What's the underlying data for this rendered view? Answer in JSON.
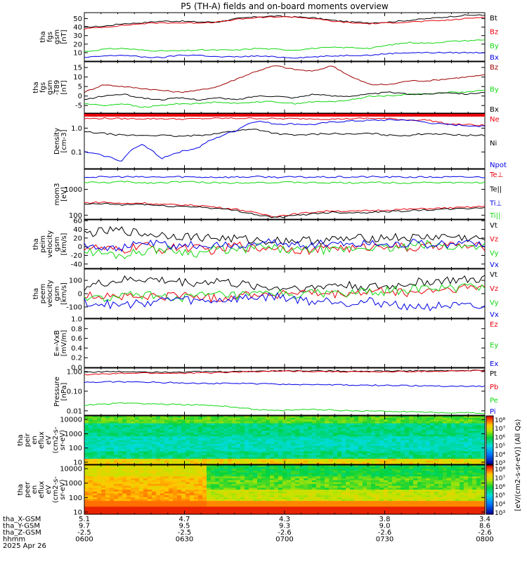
{
  "title": "P5 (TH-A) fields and on-board moments overview",
  "colors": {
    "black": "#000000",
    "red": "#e8000b",
    "green": "#11d811",
    "blue": "#0000e6",
    "darkred": "#9c0000"
  },
  "chart_data": [
    {
      "type": "line",
      "ylabel_lines": [
        "tha",
        "fgs",
        "gsm",
        "[nT]"
      ],
      "ylim": [
        0,
        57
      ],
      "yticks": [
        10,
        20,
        30,
        40,
        50
      ],
      "series": [
        {
          "name": "Bt",
          "color": "black",
          "values": [
            40,
            41,
            44,
            45,
            47,
            47,
            46,
            46,
            50,
            52,
            53,
            52,
            51,
            48,
            46,
            45,
            46,
            48,
            50,
            52,
            54,
            54
          ]
        },
        {
          "name": "Bz",
          "color": "red",
          "values": [
            38,
            40,
            42,
            44,
            45,
            45,
            45,
            46,
            49,
            51,
            52,
            52,
            50,
            47,
            45,
            44,
            45,
            46,
            47,
            48,
            50,
            52
          ]
        },
        {
          "name": "By",
          "color": "green",
          "values": [
            11,
            14,
            15,
            13,
            12,
            12,
            13,
            13,
            13,
            15,
            14,
            13,
            15,
            16,
            16,
            15,
            19,
            22,
            21,
            23,
            24,
            25
          ]
        },
        {
          "name": "Bx",
          "color": "blue",
          "values": [
            4,
            6,
            7,
            5,
            4,
            7,
            7,
            5,
            5,
            6,
            5,
            4,
            5,
            6,
            7,
            7,
            9,
            10,
            10,
            10,
            10,
            10
          ]
        }
      ]
    },
    {
      "type": "line",
      "ylabel_lines": [
        "tha",
        "fgs",
        "gsm",
        "-T89",
        "[nT]"
      ],
      "ylim": [
        -9,
        18
      ],
      "yticks": [
        -5,
        0,
        5,
        10,
        15
      ],
      "series": [
        {
          "name": "Bz",
          "color": "darkred",
          "values": [
            2,
            6,
            5,
            4,
            3,
            2,
            3,
            5,
            9,
            13,
            16,
            14,
            13,
            16,
            10,
            6,
            6,
            8,
            8,
            9,
            10,
            11
          ]
        },
        {
          "name": "By",
          "color": "green",
          "values": [
            -4,
            -5,
            -4,
            -6,
            -5,
            -4,
            -4,
            -3,
            -4,
            -3,
            -3,
            -4,
            -3,
            -3,
            -2,
            0,
            0,
            1,
            1,
            2,
            2,
            3
          ]
        },
        {
          "name": "Bx",
          "color": "black",
          "values": [
            -2,
            0,
            1,
            -1,
            -2,
            -1,
            -2,
            -1,
            -2,
            0,
            0,
            -1,
            1,
            0,
            0,
            1,
            2,
            1,
            1,
            2,
            1,
            2
          ]
        }
      ]
    },
    {
      "type": "line",
      "scale": "log",
      "ylabel_lines": [
        "Density",
        "[cm-3]"
      ],
      "ylim": [
        0.02,
        4
      ],
      "yticks": [
        0.1,
        1.0
      ],
      "series": [
        {
          "name": "Ne",
          "color": "red",
          "values": [
            2.5,
            2.6,
            2.5,
            2.5,
            2.5,
            2.4,
            2.5,
            2.6,
            2.6,
            2.6,
            2.5,
            2.5,
            2.5,
            2.4,
            2.5,
            2.6,
            2.5,
            2.2,
            2.2,
            1.5,
            1.4,
            1.3
          ]
        },
        {
          "name": "Ni",
          "color": "black",
          "values": [
            0.7,
            0.6,
            0.5,
            0.5,
            0.5,
            0.45,
            0.5,
            0.6,
            0.8,
            0.9,
            0.6,
            0.5,
            0.55,
            0.6,
            0.55,
            0.6,
            0.5,
            0.5,
            0.6,
            0.55,
            0.5,
            0.5
          ]
        },
        {
          "name": "Npot",
          "color": "blue",
          "values": [
            0.1,
            0.07,
            0.04,
            0.2,
            0.05,
            0.1,
            0.15,
            0.4,
            0.8,
            2.0,
            1.5,
            1.5,
            1.4,
            1.8,
            2.0,
            2.1,
            2.2,
            2.2,
            1.7,
            1.4,
            1.3,
            1.2
          ]
        }
      ]
    },
    {
      "type": "line",
      "scale": "log",
      "ylabel_lines": [
        "mom3",
        "[eV]"
      ],
      "ylim": [
        70,
        6000
      ],
      "yticks": [
        100,
        1000
      ],
      "series": [
        {
          "name": "Te⊥",
          "color": "red",
          "values": [
            300,
            320,
            280,
            300,
            260,
            250,
            240,
            200,
            170,
            120,
            90,
            110,
            130,
            150,
            140,
            150,
            160,
            170,
            180,
            190,
            200,
            220
          ]
        },
        {
          "name": "Te||",
          "color": "black",
          "values": [
            260,
            280,
            250,
            270,
            230,
            220,
            210,
            180,
            150,
            105,
            80,
            95,
            115,
            130,
            125,
            130,
            140,
            150,
            160,
            170,
            180,
            200
          ]
        },
        {
          "name": "Ti⊥",
          "color": "blue",
          "values": [
            3000,
            3000,
            3100,
            3000,
            3000,
            3100,
            3000,
            3000,
            3000,
            3100,
            3000,
            3000,
            3000,
            3000,
            3000,
            3100,
            3000,
            3000,
            3000,
            3000,
            3000,
            3000
          ]
        },
        {
          "name": "Ti||",
          "color": "green",
          "values": [
            1900,
            1800,
            2000,
            1800,
            1800,
            2000,
            1900,
            1800,
            1800,
            1900,
            1800,
            1900,
            1800,
            1800,
            1800,
            1900,
            1800,
            1800,
            1900,
            1800,
            1800,
            1900
          ]
        }
      ]
    },
    {
      "type": "line",
      "ylabel_lines": [
        "tha",
        "peim",
        "velocity",
        "gsm",
        "[km/s]"
      ],
      "ylim": [
        -50,
        62
      ],
      "yticks": [
        -40,
        -20,
        0,
        20,
        40,
        60
      ],
      "series": [
        {
          "name": "Vt",
          "color": "black",
          "values": [
            30,
            35,
            38,
            30,
            28,
            25,
            22,
            20,
            18,
            15,
            14,
            15,
            14,
            16,
            18,
            20,
            22,
            20,
            22,
            24,
            20,
            18
          ]
        },
        {
          "name": "Vz",
          "color": "red",
          "values": [
            0,
            -5,
            -10,
            5,
            -8,
            0,
            -5,
            -10,
            5,
            -5,
            0,
            -5,
            -10,
            0,
            -5,
            0,
            5,
            -5,
            0,
            5,
            0,
            0
          ]
        },
        {
          "name": "Vy",
          "color": "green",
          "values": [
            -10,
            -15,
            -20,
            -10,
            -5,
            -10,
            -15,
            -5,
            -10,
            0,
            -5,
            -10,
            -5,
            -10,
            -5,
            0,
            -5,
            0,
            5,
            0,
            0,
            5
          ]
        },
        {
          "name": "Vx",
          "color": "blue",
          "values": [
            5,
            0,
            -5,
            10,
            5,
            0,
            5,
            0,
            5,
            5,
            10,
            5,
            5,
            10,
            5,
            10,
            5,
            10,
            5,
            5,
            10,
            5
          ]
        }
      ]
    },
    {
      "type": "line",
      "ylabel_lines": [
        "tha",
        "peem",
        "velocity",
        "gsm",
        "[km/s]"
      ],
      "ylim": [
        -185,
        185
      ],
      "yticks": [
        -100,
        0,
        100
      ],
      "series": [
        {
          "name": "Vt",
          "color": "black",
          "values": [
            50,
            80,
            100,
            110,
            100,
            90,
            80,
            100,
            70,
            60,
            40,
            50,
            40,
            70,
            60,
            50,
            50,
            80,
            90,
            100,
            100,
            110
          ]
        },
        {
          "name": "Vz",
          "color": "red",
          "values": [
            -20,
            -10,
            -20,
            -30,
            -20,
            -10,
            -20,
            -40,
            -10,
            0,
            -10,
            10,
            0,
            -10,
            0,
            10,
            20,
            0,
            20,
            30,
            40,
            50
          ]
        },
        {
          "name": "Vy",
          "color": "green",
          "values": [
            -30,
            -40,
            -20,
            -10,
            -20,
            -30,
            -20,
            -10,
            -20,
            -10,
            0,
            -10,
            0,
            10,
            0,
            10,
            20,
            30,
            40,
            40,
            50,
            60
          ]
        },
        {
          "name": "Vx",
          "color": "blue",
          "values": [
            -60,
            -80,
            -90,
            -70,
            -50,
            -40,
            -60,
            -50,
            -40,
            -30,
            -20,
            -40,
            -60,
            -50,
            -70,
            -60,
            -80,
            -90,
            -100,
            -90,
            -100,
            -110
          ]
        }
      ]
    },
    {
      "type": "line",
      "ylabel_lines": [
        "E=-VxB",
        "[mV/m]"
      ],
      "ylim": [
        0.0,
        1.0
      ],
      "yticks": [
        0.0,
        0.2,
        0.4,
        0.6,
        0.8,
        1.0
      ],
      "series": [
        {
          "name": "Ez",
          "color": "red",
          "values": []
        },
        {
          "name": "Ey",
          "color": "green",
          "values": []
        },
        {
          "name": "Ex",
          "color": "blue",
          "values": []
        }
      ]
    },
    {
      "type": "line",
      "scale": "log",
      "ylabel_lines": [
        "Pressure",
        "[nPa]"
      ],
      "ylim": [
        0.006,
        1.5
      ],
      "yticks": [
        0.01,
        0.1,
        1.0
      ],
      "series": [
        {
          "name": "Pt",
          "color": "black",
          "values": [
            0.95,
            0.98,
            0.99,
            0.98,
            0.96,
            0.97,
            0.98,
            0.99,
            1.0,
            1.05,
            1.1,
            1.1,
            1.1,
            1.08,
            1.05,
            1.05,
            1.06,
            1.08,
            1.1,
            1.1,
            1.12,
            1.15
          ]
        },
        {
          "name": "Pb",
          "color": "red",
          "values": [
            0.7,
            0.75,
            0.8,
            0.85,
            0.82,
            0.83,
            0.85,
            0.88,
            0.95,
            1.0,
            1.05,
            1.05,
            1.03,
            1.0,
            0.98,
            0.97,
            0.98,
            1.0,
            1.02,
            1.05,
            1.08,
            1.1
          ]
        },
        {
          "name": "Pe",
          "color": "green",
          "values": [
            0.02,
            0.022,
            0.025,
            0.024,
            0.022,
            0.021,
            0.02,
            0.018,
            0.015,
            0.012,
            0.01,
            0.011,
            0.012,
            0.011,
            0.01,
            0.01,
            0.0095,
            0.009,
            0.0085,
            0.008,
            0.008,
            0.0075
          ]
        },
        {
          "name": "Pi",
          "color": "blue",
          "values": [
            0.28,
            0.3,
            0.3,
            0.29,
            0.28,
            0.27,
            0.26,
            0.25,
            0.25,
            0.24,
            0.23,
            0.22,
            0.22,
            0.21,
            0.2,
            0.2,
            0.2,
            0.19,
            0.19,
            0.18,
            0.18,
            0.18
          ]
        }
      ]
    },
    {
      "type": "heatmap",
      "ylabel_lines": [
        "tha",
        "peir",
        "en",
        "eflux",
        "eV",
        "(cm2-s-",
        "sr-eV)"
      ],
      "yticks": [
        10,
        100,
        1000,
        10000
      ]
    },
    {
      "type": "heatmap",
      "ylabel_lines": [
        "tha",
        "peer",
        "en",
        "eflux",
        "eV",
        "(cm2-s-",
        "sr-eV)"
      ],
      "yticks": [
        10,
        100,
        1000,
        10000
      ]
    }
  ],
  "colorbar": {
    "label": "[eV/(cm2-s-sr-eV)] (All Qs)",
    "ticks_upper": [
      "10⁸",
      "10⁷",
      "10⁶",
      "10⁵",
      "10⁴",
      "10³"
    ],
    "ticks_lower": [
      "10⁸",
      "10⁷",
      "10⁶",
      "10⁵",
      "10⁴",
      "10³"
    ]
  },
  "x_axis": {
    "row_labels": [
      "tha_X-GSM",
      "tha_Y-GSM",
      "tha_Z-GSM",
      "hhmm",
      "2025 Apr 26"
    ],
    "columns": [
      {
        "vals": [
          "5.1",
          "9.7",
          "-2.5",
          "0600"
        ]
      },
      {
        "vals": [
          "4.7",
          "9.5",
          "-2.5",
          "0630"
        ]
      },
      {
        "vals": [
          "4.3",
          "9.3",
          "-2.6",
          "0700"
        ]
      },
      {
        "vals": [
          "3.8",
          "9.0",
          "-2.6",
          "0730"
        ]
      },
      {
        "vals": [
          "3.4",
          "8.6",
          "-2.6",
          "0800"
        ]
      }
    ]
  }
}
